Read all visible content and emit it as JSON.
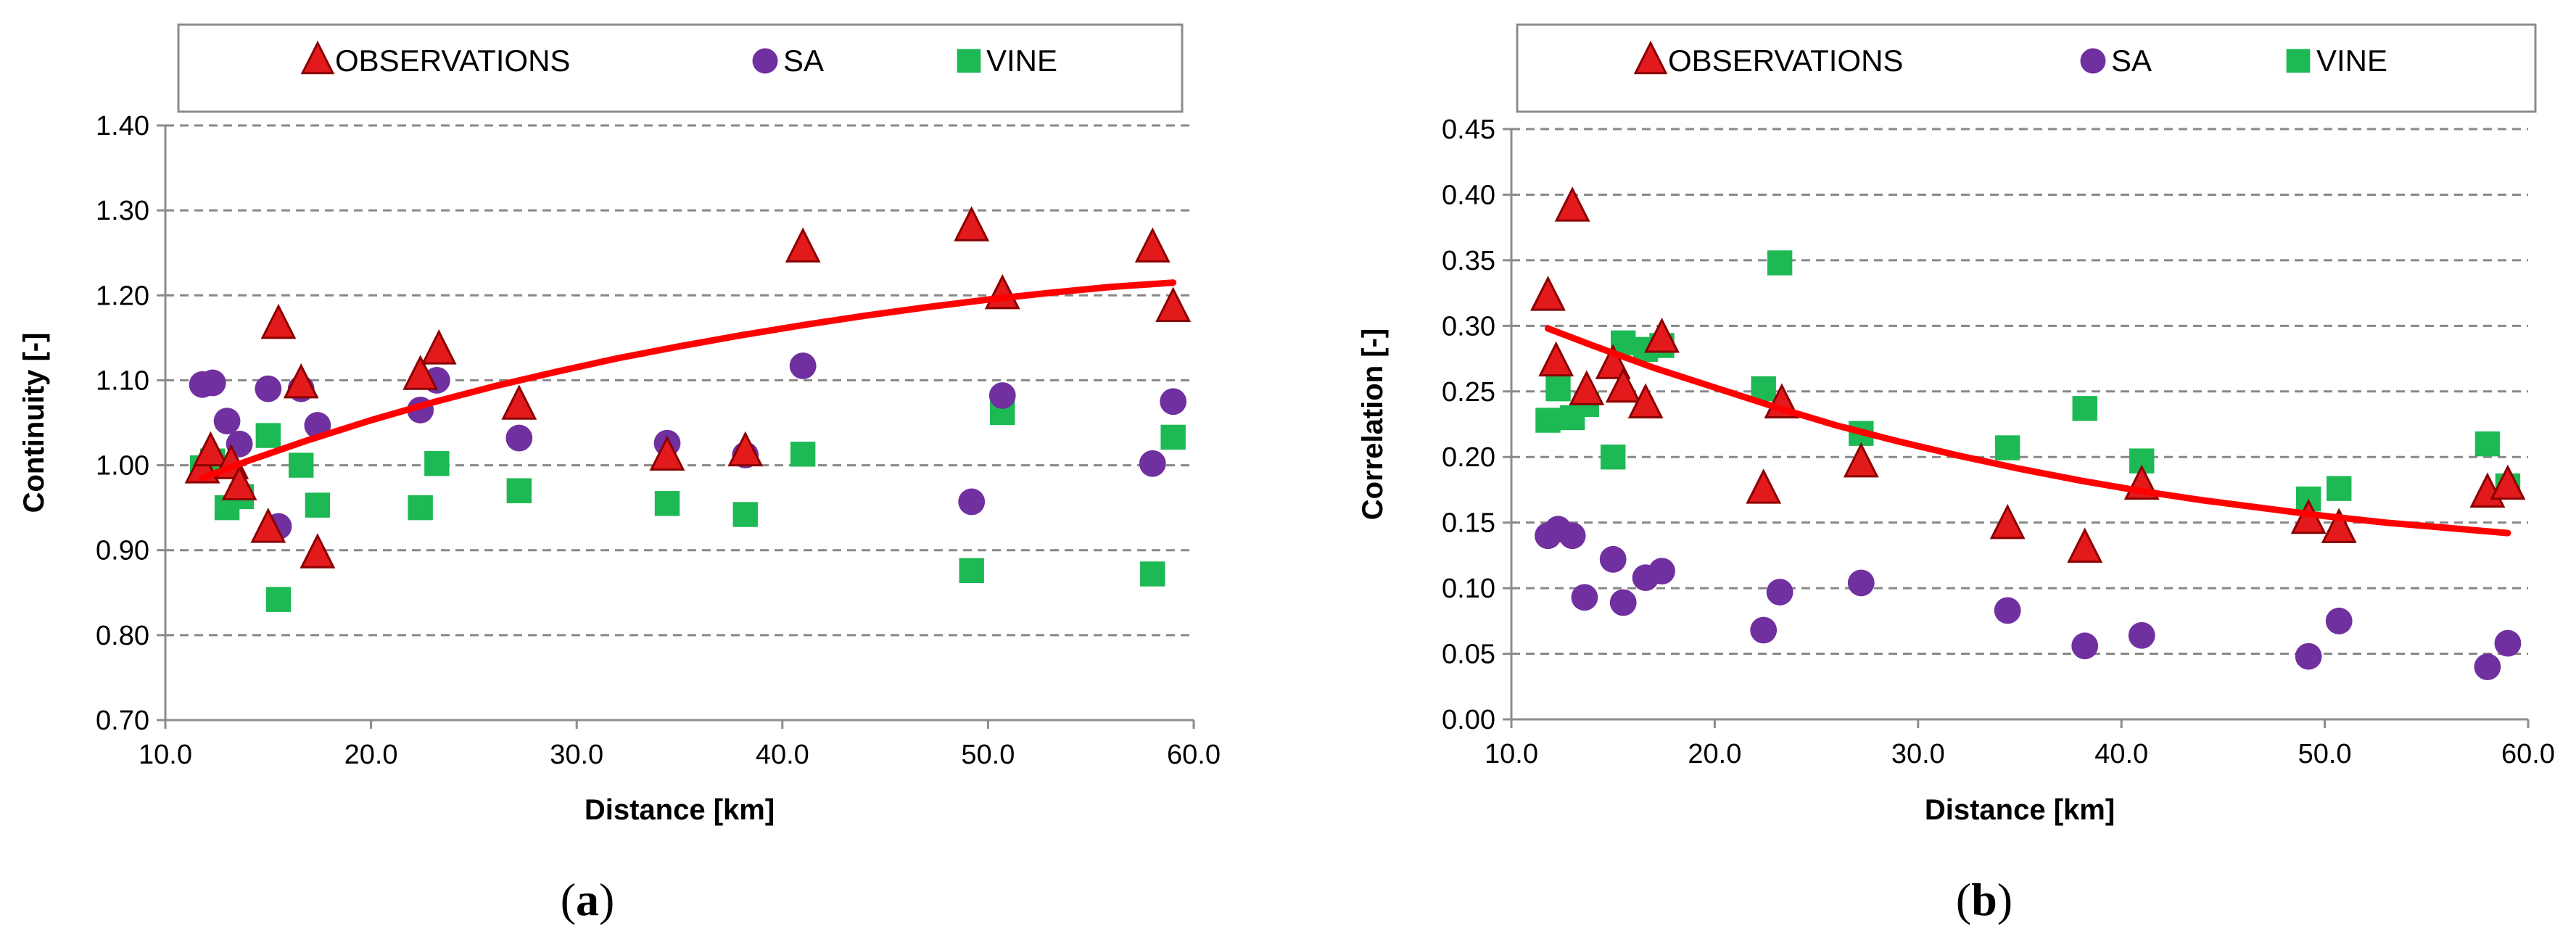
{
  "colors": {
    "observations": "#e31a1c",
    "observations_edge": "#8b0000",
    "sa": "#7030a0",
    "vine": "#1db954",
    "fit": "#ff0000",
    "grid": "#888888"
  },
  "chart_data": [
    {
      "type": "scatter",
      "id": "a",
      "caption": "a",
      "xlabel": "Distance [km]",
      "ylabel": "Continuity [-]",
      "xlim": [
        10,
        60
      ],
      "ylim": [
        0.7,
        1.4
      ],
      "xticks": [
        10,
        20,
        30,
        40,
        50,
        60
      ],
      "xtick_labels": [
        "10.0",
        "20.0",
        "30.0",
        "40.0",
        "50.0",
        "60.0"
      ],
      "yticks": [
        0.7,
        0.8,
        0.9,
        1.0,
        1.1,
        1.2,
        1.3,
        1.4
      ],
      "ytick_labels": [
        "0.70",
        "0.80",
        "0.90",
        "1.00",
        "1.10",
        "1.20",
        "1.30",
        "1.40"
      ],
      "grid": "horizontal-dashed",
      "legend": [
        "OBSERVATIONS",
        "SA",
        "VINE"
      ],
      "legend_position": "top",
      "series": [
        {
          "name": "OBSERVATIONS",
          "marker": "triangle",
          "points": [
            [
              11.8,
              0.995
            ],
            [
              12.2,
              1.015
            ],
            [
              13.2,
              1.0
            ],
            [
              13.6,
              0.975
            ],
            [
              15.0,
              0.925
            ],
            [
              15.5,
              1.165
            ],
            [
              16.6,
              1.095
            ],
            [
              17.4,
              0.895
            ],
            [
              22.4,
              1.105
            ],
            [
              23.3,
              1.135
            ],
            [
              27.2,
              1.07
            ],
            [
              34.4,
              1.01
            ],
            [
              38.2,
              1.015
            ],
            [
              41.0,
              1.255
            ],
            [
              49.2,
              1.28
            ],
            [
              50.7,
              1.2
            ],
            [
              58.0,
              1.255
            ],
            [
              59.0,
              1.185
            ]
          ]
        },
        {
          "name": "SA",
          "marker": "circle",
          "points": [
            [
              11.8,
              1.095
            ],
            [
              12.3,
              1.097
            ],
            [
              13.0,
              1.052
            ],
            [
              13.6,
              1.025
            ],
            [
              15.0,
              1.09
            ],
            [
              15.5,
              0.928
            ],
            [
              16.6,
              1.09
            ],
            [
              17.4,
              1.047
            ],
            [
              22.4,
              1.065
            ],
            [
              23.2,
              1.1
            ],
            [
              27.2,
              1.032
            ],
            [
              34.4,
              1.026
            ],
            [
              38.2,
              1.012
            ],
            [
              41.0,
              1.117
            ],
            [
              49.2,
              0.957
            ],
            [
              50.7,
              1.082
            ],
            [
              58.0,
              1.002
            ],
            [
              59.0,
              1.075
            ]
          ]
        },
        {
          "name": "VINE",
          "marker": "square",
          "points": [
            [
              11.8,
              0.997
            ],
            [
              12.3,
              1.005
            ],
            [
              13.0,
              0.95
            ],
            [
              13.7,
              0.963
            ],
            [
              15.0,
              1.035
            ],
            [
              15.5,
              0.842
            ],
            [
              16.6,
              1.0
            ],
            [
              17.4,
              0.953
            ],
            [
              22.4,
              0.95
            ],
            [
              23.2,
              1.002
            ],
            [
              27.2,
              0.97
            ],
            [
              34.4,
              0.955
            ],
            [
              38.2,
              0.942
            ],
            [
              41.0,
              1.013
            ],
            [
              49.2,
              0.876
            ],
            [
              50.7,
              1.062
            ],
            [
              58.0,
              0.872
            ],
            [
              59.0,
              1.033
            ]
          ]
        }
      ],
      "fit": {
        "name": "trend",
        "x": [
          11.8,
          14,
          17,
          20,
          23,
          26,
          29,
          32,
          35,
          38,
          41,
          44,
          47,
          50,
          53,
          56,
          59
        ],
        "y": [
          0.985,
          1.005,
          1.03,
          1.053,
          1.074,
          1.093,
          1.11,
          1.126,
          1.14,
          1.153,
          1.165,
          1.176,
          1.186,
          1.195,
          1.203,
          1.21,
          1.215
        ]
      }
    },
    {
      "type": "scatter",
      "id": "b",
      "caption": "b",
      "xlabel": "Distance [km]",
      "ylabel": "Correlation [-]",
      "xlim": [
        10,
        60
      ],
      "ylim": [
        0.0,
        0.45
      ],
      "xticks": [
        10,
        20,
        30,
        40,
        50,
        60
      ],
      "xtick_labels": [
        "10.0",
        "20.0",
        "30.0",
        "40.0",
        "50.0",
        "60.0"
      ],
      "yticks": [
        0.0,
        0.05,
        0.1,
        0.15,
        0.2,
        0.25,
        0.3,
        0.35,
        0.4,
        0.45
      ],
      "ytick_labels": [
        "0.00",
        "0.05",
        "0.10",
        "0.15",
        "0.20",
        "0.25",
        "0.30",
        "0.35",
        "0.40",
        "0.45"
      ],
      "grid": "horizontal-dashed",
      "legend": [
        "OBSERVATIONS",
        "SA",
        "VINE"
      ],
      "legend_position": "top",
      "series": [
        {
          "name": "OBSERVATIONS",
          "marker": "triangle",
          "points": [
            [
              11.8,
              0.322
            ],
            [
              12.2,
              0.272
            ],
            [
              13.0,
              0.39
            ],
            [
              13.7,
              0.25
            ],
            [
              15.0,
              0.27
            ],
            [
              15.5,
              0.252
            ],
            [
              16.6,
              0.24
            ],
            [
              17.4,
              0.29
            ],
            [
              22.4,
              0.175
            ],
            [
              23.3,
              0.24
            ],
            [
              27.2,
              0.195
            ],
            [
              34.4,
              0.148
            ],
            [
              38.2,
              0.13
            ],
            [
              41.0,
              0.178
            ],
            [
              49.2,
              0.152
            ],
            [
              50.7,
              0.145
            ],
            [
              58.0,
              0.172
            ],
            [
              59.0,
              0.178
            ]
          ]
        },
        {
          "name": "SA",
          "marker": "circle",
          "points": [
            [
              11.8,
              0.14
            ],
            [
              12.3,
              0.145
            ],
            [
              13.0,
              0.14
            ],
            [
              13.6,
              0.093
            ],
            [
              15.0,
              0.122
            ],
            [
              15.5,
              0.089
            ],
            [
              16.6,
              0.108
            ],
            [
              17.4,
              0.113
            ],
            [
              22.4,
              0.068
            ],
            [
              23.2,
              0.097
            ],
            [
              27.2,
              0.104
            ],
            [
              34.4,
              0.083
            ],
            [
              38.2,
              0.056
            ],
            [
              41.0,
              0.064
            ],
            [
              49.2,
              0.048
            ],
            [
              50.7,
              0.075
            ],
            [
              58.0,
              0.04
            ],
            [
              59.0,
              0.058
            ]
          ]
        },
        {
          "name": "VINE",
          "marker": "square",
          "points": [
            [
              11.8,
              0.228
            ],
            [
              12.3,
              0.252
            ],
            [
              13.0,
              0.23
            ],
            [
              13.7,
              0.24
            ],
            [
              15.0,
              0.2
            ],
            [
              15.5,
              0.287
            ],
            [
              16.6,
              0.282
            ],
            [
              17.4,
              0.285
            ],
            [
              22.4,
              0.252
            ],
            [
              23.2,
              0.348
            ],
            [
              27.2,
              0.218
            ],
            [
              34.4,
              0.207
            ],
            [
              38.2,
              0.237
            ],
            [
              41.0,
              0.197
            ],
            [
              49.2,
              0.168
            ],
            [
              50.7,
              0.176
            ],
            [
              58.0,
              0.21
            ],
            [
              59.0,
              0.178
            ]
          ]
        }
      ],
      "fit": {
        "name": "trend",
        "x": [
          11.8,
          14,
          17,
          20,
          23,
          26,
          29,
          32,
          35,
          38,
          41,
          44,
          47,
          50,
          53,
          56,
          59
        ],
        "y": [
          0.298,
          0.285,
          0.268,
          0.253,
          0.238,
          0.224,
          0.212,
          0.201,
          0.191,
          0.182,
          0.174,
          0.167,
          0.161,
          0.155,
          0.15,
          0.146,
          0.142
        ]
      }
    }
  ]
}
